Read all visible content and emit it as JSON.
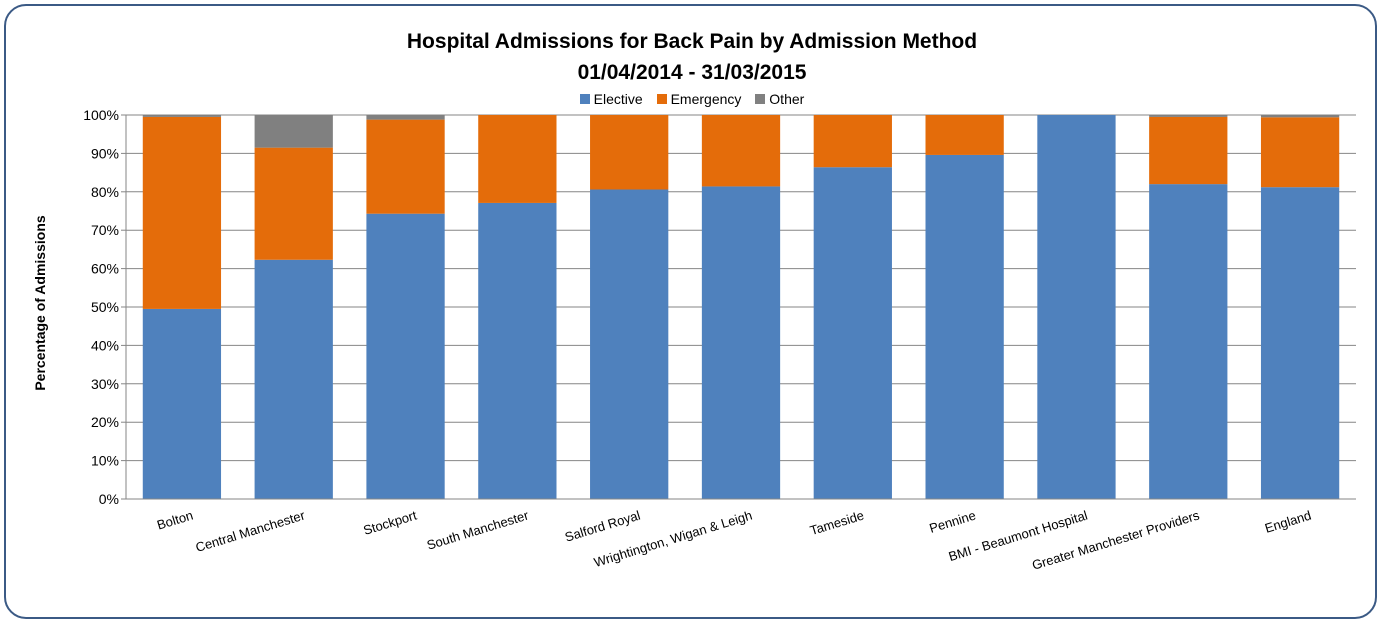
{
  "chart_data": {
    "type": "bar",
    "stacked": true,
    "title": "Hospital Admissions for Back Pain by Admission Method",
    "subtitle": "01/04/2014 - 31/03/2015",
    "xlabel": "",
    "ylabel": "Percentage of Admissions",
    "ylim": [
      0,
      100
    ],
    "y_ticks": [
      "0%",
      "10%",
      "20%",
      "30%",
      "40%",
      "50%",
      "60%",
      "70%",
      "80%",
      "90%",
      "100%"
    ],
    "grid": true,
    "legend_position": "top",
    "categories": [
      "Bolton",
      "Central Manchester",
      "Stockport",
      "South Manchester",
      "Salford Royal",
      "Wrightington, Wigan & Leigh",
      "Tameside",
      "Pennine",
      "BMI - Beaumont Hospital",
      "Greater Manchester Providers",
      "England"
    ],
    "series": [
      {
        "name": "Elective",
        "color": "#4f81bd",
        "values": [
          49.5,
          62.3,
          74.3,
          77.1,
          80.6,
          81.4,
          86.4,
          89.6,
          100,
          82.0,
          81.2
        ]
      },
      {
        "name": "Emergency",
        "color": "#e46c0a",
        "values": [
          50.0,
          29.2,
          24.5,
          22.9,
          19.4,
          18.6,
          13.6,
          10.4,
          0,
          17.5,
          18.2
        ]
      },
      {
        "name": "Other",
        "color": "#808080",
        "values": [
          0.5,
          8.5,
          1.2,
          0,
          0,
          0,
          0,
          0,
          0,
          0.5,
          0.6
        ]
      }
    ]
  }
}
